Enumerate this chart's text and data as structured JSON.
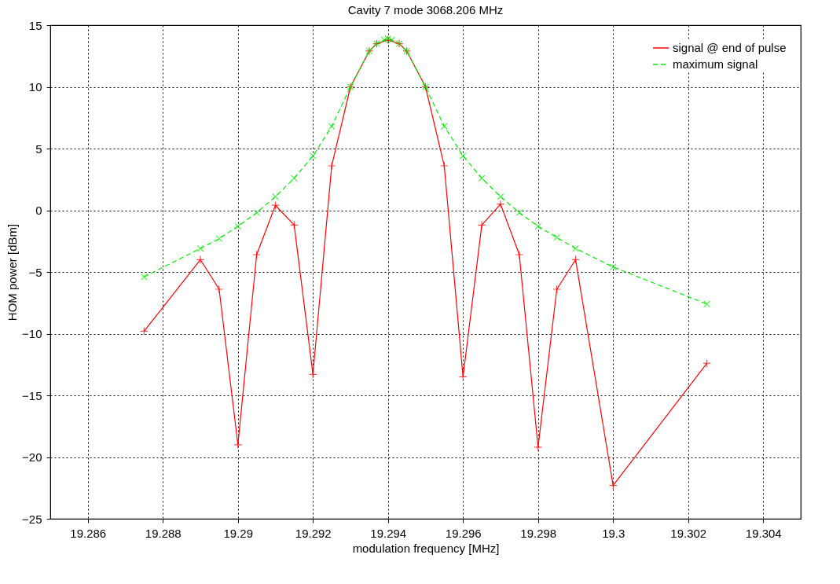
{
  "chart_data": {
    "type": "line",
    "title": "Cavity 7 mode 3068.206 MHz",
    "xlabel": "modulation frequency [MHz]",
    "ylabel": "HOM power [dBm]",
    "xlim": [
      19.285,
      19.305
    ],
    "xticks": [
      19.286,
      19.288,
      19.29,
      19.292,
      19.294,
      19.296,
      19.298,
      19.3,
      19.302,
      19.304
    ],
    "ylim": [
      -25,
      15
    ],
    "yticks": [
      -25,
      -20,
      -15,
      -10,
      -5,
      0,
      5,
      10,
      15
    ],
    "grid": true,
    "legend": "top right",
    "series": [
      {
        "name": "signal @ end of pulse",
        "color": "#ff0000",
        "marker": "cross",
        "line_style": "solid",
        "x": [
          19.2875,
          19.289,
          19.2895,
          19.29,
          19.2905,
          19.291,
          19.2915,
          19.292,
          19.2925,
          19.293,
          19.2935,
          19.2937,
          19.294,
          19.2943,
          19.2945,
          19.295,
          19.2955,
          19.296,
          19.2965,
          19.297,
          19.2975,
          19.298,
          19.2985,
          19.299,
          19.3,
          19.3025
        ],
        "values": [
          -9.8,
          -4.0,
          -6.4,
          -19.0,
          -3.6,
          0.4,
          -1.2,
          -13.3,
          3.6,
          10.0,
          12.9,
          13.5,
          13.8,
          13.5,
          12.9,
          10.0,
          3.6,
          -13.5,
          -1.2,
          0.5,
          -3.6,
          -19.2,
          -6.4,
          -4.0,
          -22.3,
          -12.4
        ]
      },
      {
        "name": "maximum signal",
        "color": "#00ee00",
        "marker": "x",
        "line_style": "dashed",
        "x": [
          19.2875,
          19.289,
          19.2895,
          19.29,
          19.2905,
          19.291,
          19.2915,
          19.292,
          19.2925,
          19.293,
          19.2935,
          19.2937,
          19.2939,
          19.294,
          19.2941,
          19.2943,
          19.2945,
          19.295,
          19.2955,
          19.296,
          19.2965,
          19.297,
          19.2975,
          19.298,
          19.2985,
          19.299,
          19.3,
          19.3025
        ],
        "values": [
          -5.4,
          -3.1,
          -2.3,
          -1.3,
          -0.2,
          1.1,
          2.6,
          4.4,
          6.8,
          10.0,
          12.9,
          13.5,
          13.8,
          13.9,
          13.8,
          13.5,
          12.9,
          10.0,
          6.8,
          4.4,
          2.6,
          1.1,
          -0.2,
          -1.3,
          -2.2,
          -3.1,
          -4.6,
          -7.6
        ]
      }
    ]
  }
}
